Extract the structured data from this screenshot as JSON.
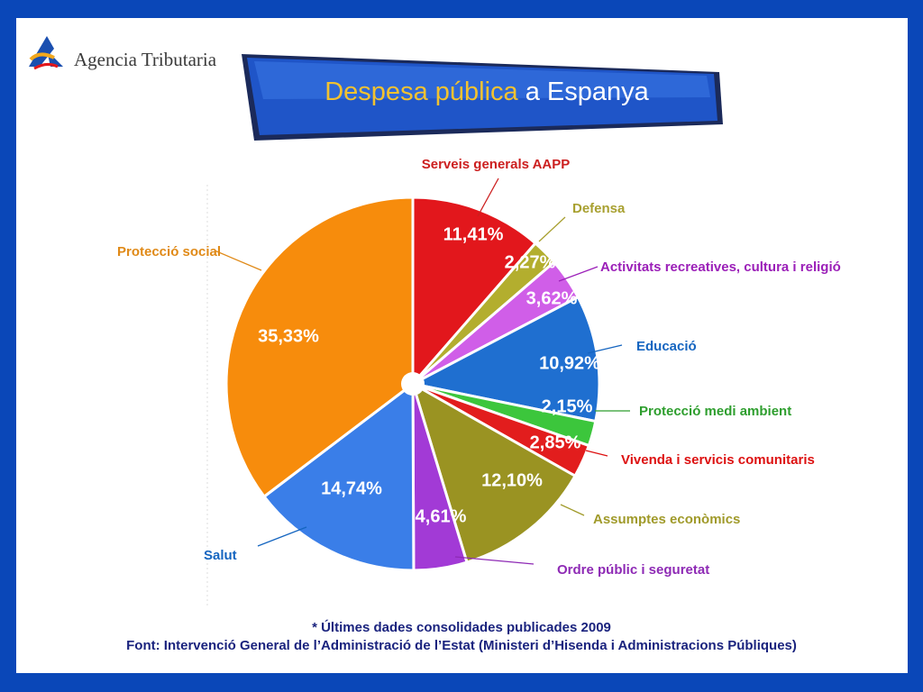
{
  "header": {
    "logo_text": "Agencia Tributaria",
    "title_highlight": "Despesa pública",
    "title_rest": " a Espanya"
  },
  "chart_data": {
    "type": "pie",
    "title": "Despesa pública a Espanya",
    "slices": [
      {
        "label": "Serveis generals AAPP",
        "value": 11.41,
        "value_label": "11,41%",
        "color": "#e2171c"
      },
      {
        "label": "Defensa",
        "value": 2.27,
        "value_label": "2,27%",
        "color": "#b3ae2e"
      },
      {
        "label": "Activitats recreatives, cultura i religió",
        "value": 3.62,
        "value_label": "3,62%",
        "color": "#d05ee8"
      },
      {
        "label": "Educació",
        "value": 10.92,
        "value_label": "10,92%",
        "color": "#1f6fd0"
      },
      {
        "label": "Protecció medi ambient",
        "value": 2.15,
        "value_label": "2,15%",
        "color": "#3cc63c"
      },
      {
        "label": "Vivenda i servicis comunitaris",
        "value": 2.85,
        "value_label": "2,85%",
        "color": "#e21d1d"
      },
      {
        "label": "Assumptes econòmics",
        "value": 12.1,
        "value_label": "12,10%",
        "color": "#9a9322"
      },
      {
        "label": "Ordre públic i seguretat",
        "value": 4.61,
        "value_label": "4,61%",
        "color": "#a23ad6"
      },
      {
        "label": "Salut",
        "value": 14.74,
        "value_label": "14,74%",
        "color": "#3a7ee8"
      },
      {
        "label": "Protecció social",
        "value": 35.33,
        "value_label": "35,33%",
        "color": "#f78c0c"
      }
    ],
    "label_colors": [
      "#cc1f1f",
      "#a8a030",
      "#9b1fb8",
      "#1565c0",
      "#2e9e2e",
      "#dd1111",
      "#a09a2a",
      "#8e2ab5",
      "#1565c0",
      "#e08a18"
    ]
  },
  "footer": {
    "note": "* Últimes dades consolidades publicades 2009",
    "source": "Font: Intervenció General de l’Administració de l’Estat (Ministeri d’Hisenda i Administracions Públiques)"
  }
}
